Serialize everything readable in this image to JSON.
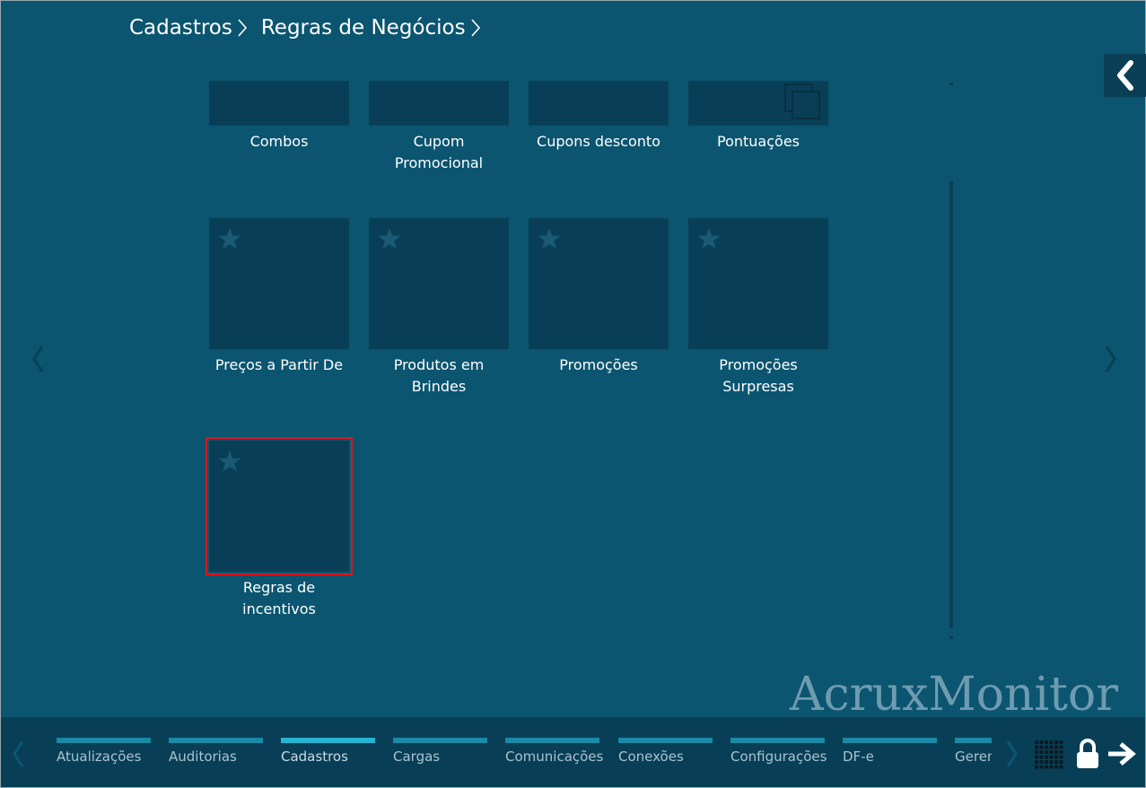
{
  "breadcrumb": {
    "items": [
      "Cadastros",
      "Regras de Negócios"
    ]
  },
  "tiles": {
    "row1": [
      {
        "label": "Combos"
      },
      {
        "label": "Cupom Promocional"
      },
      {
        "label": "Cupons desconto"
      },
      {
        "label": "Pontuações"
      }
    ],
    "row2": [
      {
        "label": "Preços a Partir De"
      },
      {
        "label": "Produtos em Brindes"
      },
      {
        "label": "Promoções"
      },
      {
        "label": "Promoções Surpresas"
      }
    ],
    "row3": [
      {
        "label": "Regras de incentivos",
        "selected": true
      }
    ]
  },
  "brand": "AcruxMonitor",
  "taskbar": {
    "items": [
      {
        "label": "Atualizações"
      },
      {
        "label": "Auditorias"
      },
      {
        "label": "Cadastros",
        "active": true
      },
      {
        "label": "Cargas"
      },
      {
        "label": "Comunicações"
      },
      {
        "label": "Conexões"
      },
      {
        "label": "Configurações"
      },
      {
        "label": "DF-e"
      },
      {
        "label": "Geren"
      }
    ]
  },
  "icons": {
    "back": "chevron-left-icon",
    "star": "star-icon",
    "multi": "multi-window-icon",
    "grid": "grid-icon",
    "lock": "lock-icon",
    "logout": "arrow-right-icon"
  },
  "colors": {
    "background": "#0b5570",
    "tile": "#083f57",
    "selected_border": "#e0141b",
    "active_tab_bar": "#27b3d3"
  }
}
